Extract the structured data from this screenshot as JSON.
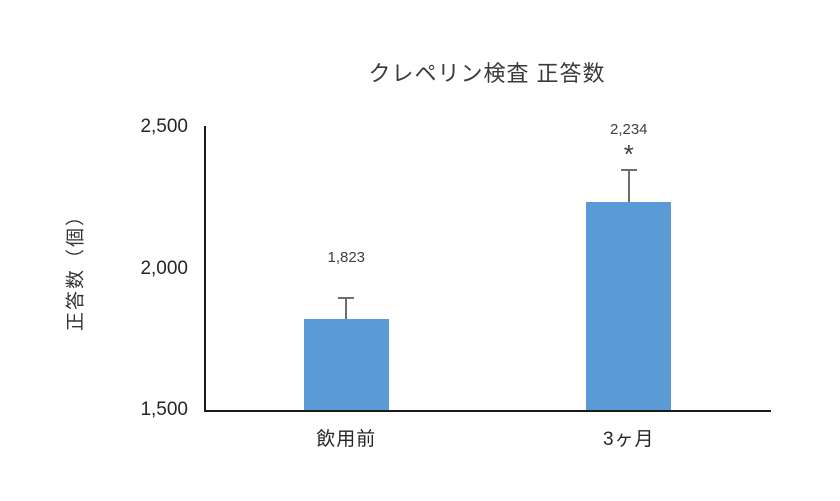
{
  "chart_data": {
    "type": "bar",
    "title": "クレペリン検査 正答数",
    "ylabel": "正答数（個）",
    "xlabel": "",
    "categories": [
      "飲用前",
      "3ヶ月"
    ],
    "values": [
      1823,
      2234
    ],
    "value_labels": [
      "1,823",
      "2,234"
    ],
    "errors": [
      77,
      118
    ],
    "annotations": [
      "",
      "*"
    ],
    "ylim": [
      1500,
      2500
    ],
    "yticks": [
      1500,
      2000,
      2500
    ],
    "ytick_labels": [
      "1,500",
      "2,000",
      "2,500"
    ],
    "grid": false,
    "legend_position": "none",
    "colors": {
      "bar": "#5B9BD5",
      "error": "#6e6e6e",
      "axis": "#1a1a1a",
      "text": "#3a3a3a"
    }
  }
}
